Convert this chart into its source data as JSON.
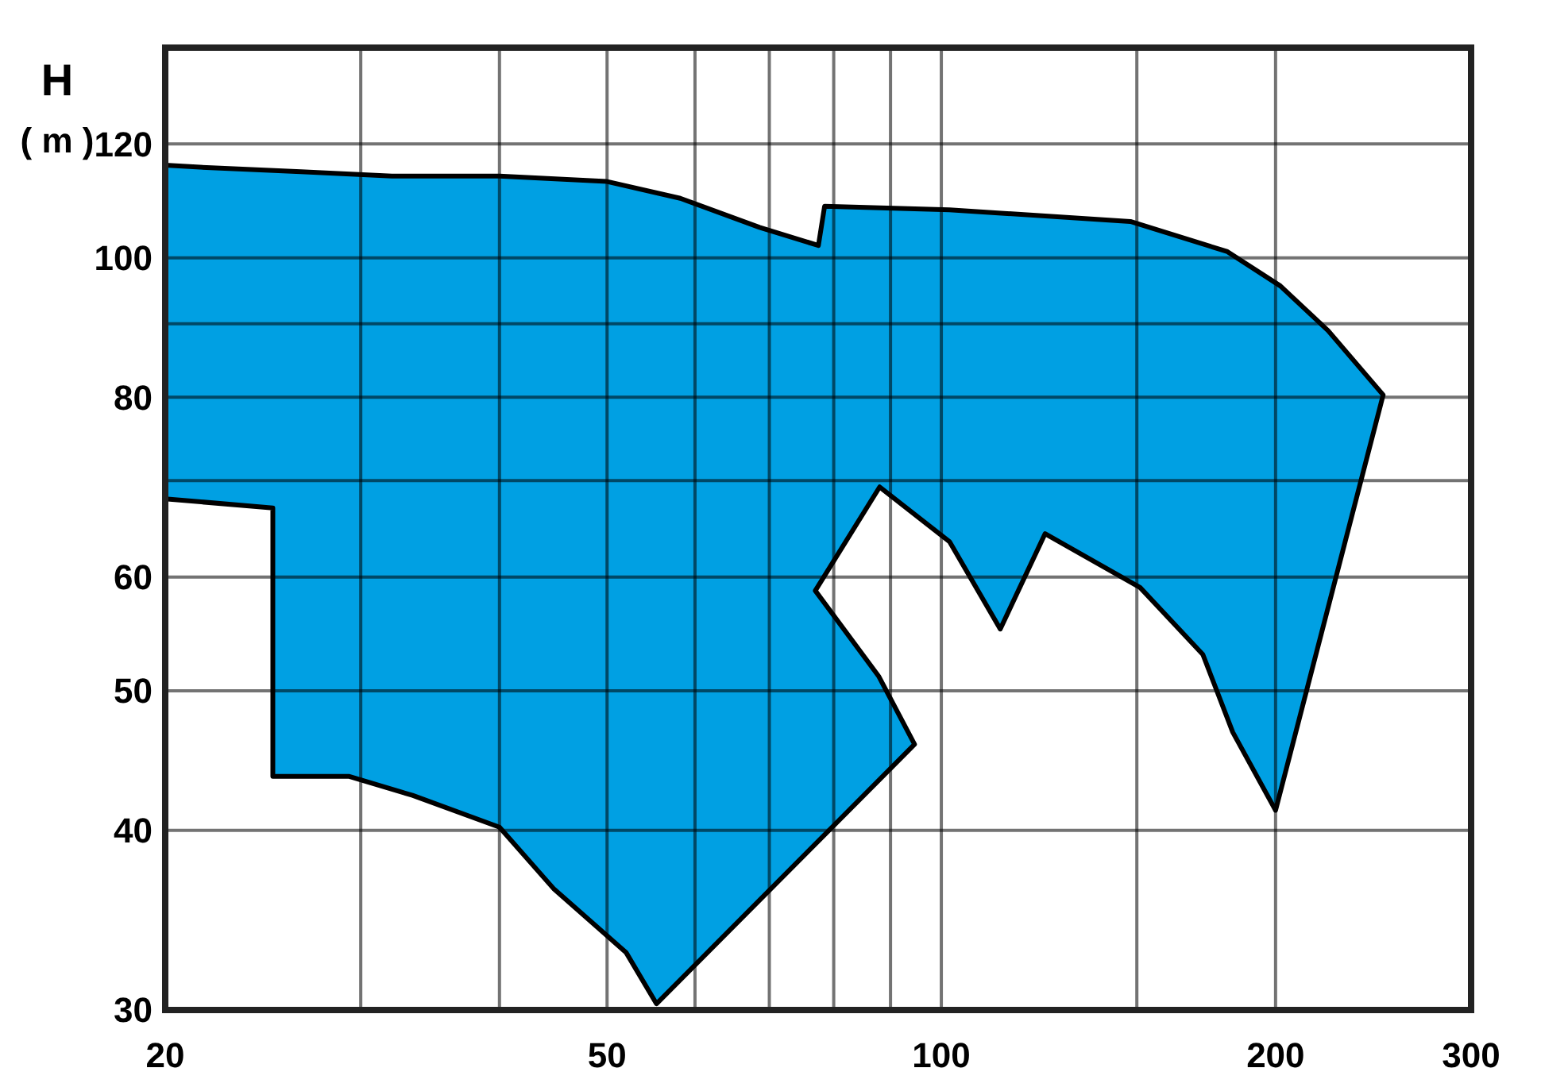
{
  "chart_data": {
    "type": "area",
    "ylabel": "H\n( m )",
    "log": "xy",
    "grid": true,
    "xlim": [
      20,
      300
    ],
    "ylim": [
      30,
      140
    ],
    "xticks": [
      20,
      {
        "value": 30,
        "label": null
      },
      {
        "value": 40,
        "label": null
      },
      50,
      {
        "value": 60,
        "label": null
      },
      {
        "value": 70,
        "label": null
      },
      {
        "value": 80,
        "label": null
      },
      {
        "value": 90,
        "label": null
      },
      100,
      {
        "value": 150,
        "label": null
      },
      200,
      300
    ],
    "yticks": [
      30,
      40,
      50,
      60,
      {
        "value": 70,
        "label": null
      },
      80,
      {
        "value": 90,
        "label": null
      },
      100,
      120
    ],
    "series": [
      {
        "color": "#00a0e3",
        "x": [
          20,
          22,
          26.5,
          32,
          40,
          50,
          58.2,
          68.6,
          77.5,
          78.5,
          101.7,
          148,
          181,
          202,
          223,
          250,
          200,
          183,
          172,
          151,
          124,
          113,
          101.7,
          88,
          77,
          87.8,
          94.6,
          55.4,
          52,
          44.8,
          40,
          33.4,
          29.3,
          25,
          25,
          20
        ],
        "values": [
          116,
          115.5,
          114.8,
          114,
          114,
          113,
          110,
          105,
          102,
          108.6,
          108,
          106,
          101,
          95.6,
          89,
          80.3,
          41.3,
          46.8,
          53,
          59,
          64.3,
          55.2,
          63.5,
          69.3,
          58.7,
          51.2,
          45.9,
          30.3,
          32.9,
          36.4,
          40.2,
          42.3,
          43.6,
          43.6,
          67,
          68
        ]
      }
    ]
  }
}
